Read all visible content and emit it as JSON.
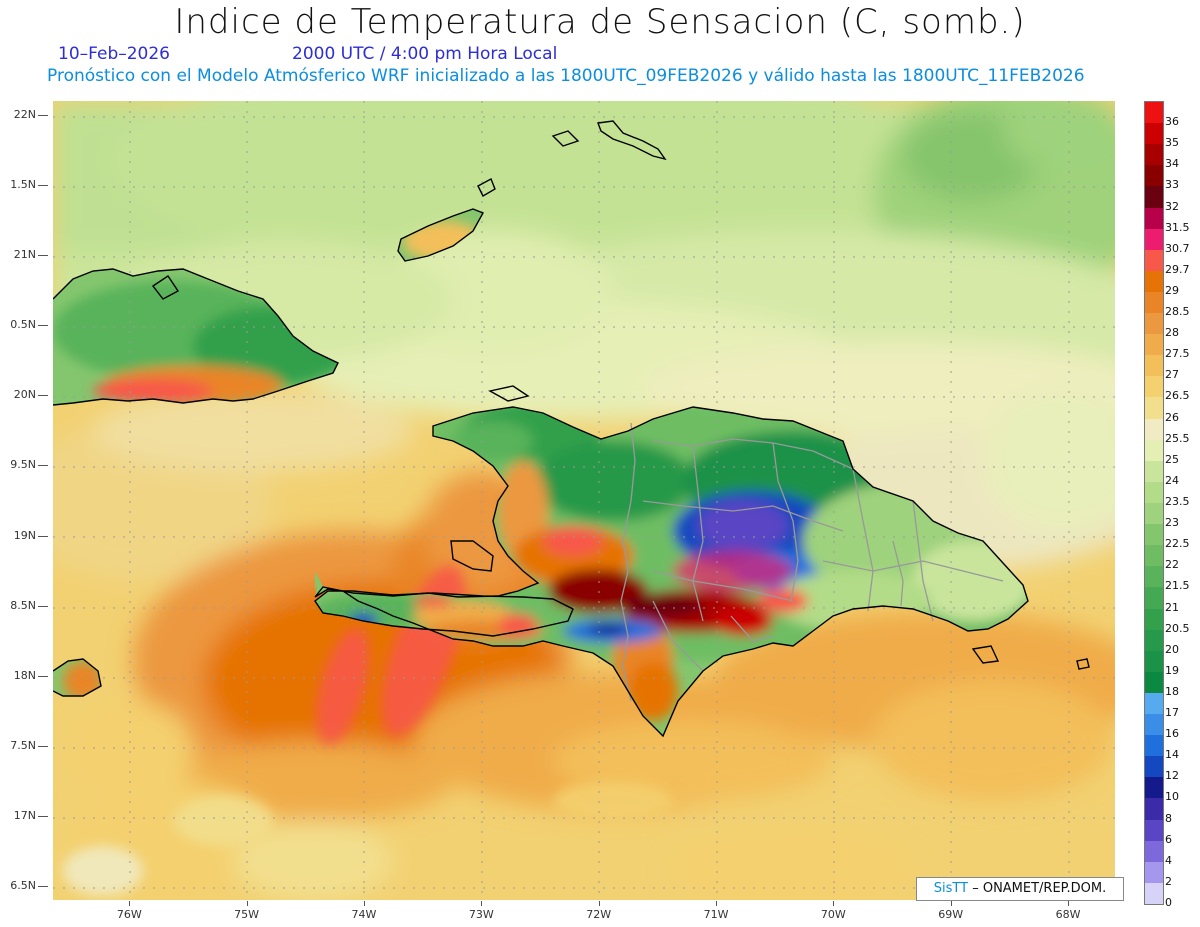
{
  "header": {
    "title": "Indice de Temperatura de Sensacion (C, somb.)",
    "date": "10–Feb–2026",
    "time": "2000 UTC / 4:00 pm Hora Local",
    "model_info": "Pronóstico con el Modelo Atmósferico WRF inicializado a las 1800UTC_09FEB2026 y válido hasta las  1800UTC_11FEB2026"
  },
  "map": {
    "lat_labels": [
      {
        "label": "22N",
        "lat": 22
      },
      {
        "label": "1.5N",
        "lat": 21.5
      },
      {
        "label": "21N",
        "lat": 21
      },
      {
        "label": "0.5N",
        "lat": 20.5
      },
      {
        "label": "20N",
        "lat": 20
      },
      {
        "label": "9.5N",
        "lat": 19.5
      },
      {
        "label": "19N",
        "lat": 19
      },
      {
        "label": "8.5N",
        "lat": 18.5
      },
      {
        "label": "18N",
        "lat": 18
      },
      {
        "label": "7.5N",
        "lat": 17.5
      },
      {
        "label": "17N",
        "lat": 17
      },
      {
        "label": "6.5N",
        "lat": 16.5
      }
    ],
    "lon_labels": [
      {
        "label": "76W",
        "lon": -76
      },
      {
        "label": "75W",
        "lon": -75
      },
      {
        "label": "74W",
        "lon": -74
      },
      {
        "label": "73W",
        "lon": -73
      },
      {
        "label": "72W",
        "lon": -72
      },
      {
        "label": "71W",
        "lon": -71
      },
      {
        "label": "70W",
        "lon": -70
      },
      {
        "label": "69W",
        "lon": -69
      },
      {
        "label": "68W",
        "lon": -68
      }
    ],
    "lat_range": [
      16.4,
      22.1
    ],
    "lon_range": [
      -76.65,
      -67.6
    ],
    "grid": "dotted",
    "land_outline_color": "#000000",
    "province_border_color": "#999999"
  },
  "colorbar": {
    "levels": [
      {
        "label": "36",
        "color": "#ee1111"
      },
      {
        "label": "35",
        "color": "#cc0000"
      },
      {
        "label": "34",
        "color": "#a80000"
      },
      {
        "label": "33",
        "color": "#8a0000"
      },
      {
        "label": "32",
        "color": "#6a0010"
      },
      {
        "label": "31.5",
        "color": "#b8004a"
      },
      {
        "label": "30.7",
        "color": "#ee1c6e"
      },
      {
        "label": "29.7",
        "color": "#f8584a"
      },
      {
        "label": "29",
        "color": "#e67306"
      },
      {
        "label": "28.5",
        "color": "#e98526"
      },
      {
        "label": "28",
        "color": "#ec9840"
      },
      {
        "label": "27.5",
        "color": "#f0ac4a"
      },
      {
        "label": "27",
        "color": "#f3bf5a"
      },
      {
        "label": "26.5",
        "color": "#f4d06e"
      },
      {
        "label": "26",
        "color": "#f2df8e"
      },
      {
        "label": "25.5",
        "color": "#f0ebc3"
      },
      {
        "label": "25",
        "color": "#e5efb4"
      },
      {
        "label": "24",
        "color": "#c9e59c"
      },
      {
        "label": "23.5",
        "color": "#b2dc88"
      },
      {
        "label": "23",
        "color": "#9ed27c"
      },
      {
        "label": "22.5",
        "color": "#84c66e"
      },
      {
        "label": "22",
        "color": "#6ebd63"
      },
      {
        "label": "21.5",
        "color": "#58b35a"
      },
      {
        "label": "21",
        "color": "#44a952"
      },
      {
        "label": "20.5",
        "color": "#33a04c"
      },
      {
        "label": "20",
        "color": "#26994a"
      },
      {
        "label": "19",
        "color": "#1a9248"
      },
      {
        "label": "18",
        "color": "#0c8940"
      },
      {
        "label": "17",
        "color": "#55aaf0"
      },
      {
        "label": "16",
        "color": "#3a8ee8"
      },
      {
        "label": "14",
        "color": "#1f6fdc"
      },
      {
        "label": "12",
        "color": "#1448c0"
      },
      {
        "label": "10",
        "color": "#141a8c"
      },
      {
        "label": "8",
        "color": "#3c2ba8"
      },
      {
        "label": "6",
        "color": "#5a45c4"
      },
      {
        "label": "4",
        "color": "#7d68dc"
      },
      {
        "label": "2",
        "color": "#a596ee"
      },
      {
        "label": "0",
        "color": "#d7d2f8"
      }
    ]
  },
  "credit": {
    "brand": "SisTT",
    "text": "– ONAMET/REP.DOM."
  }
}
